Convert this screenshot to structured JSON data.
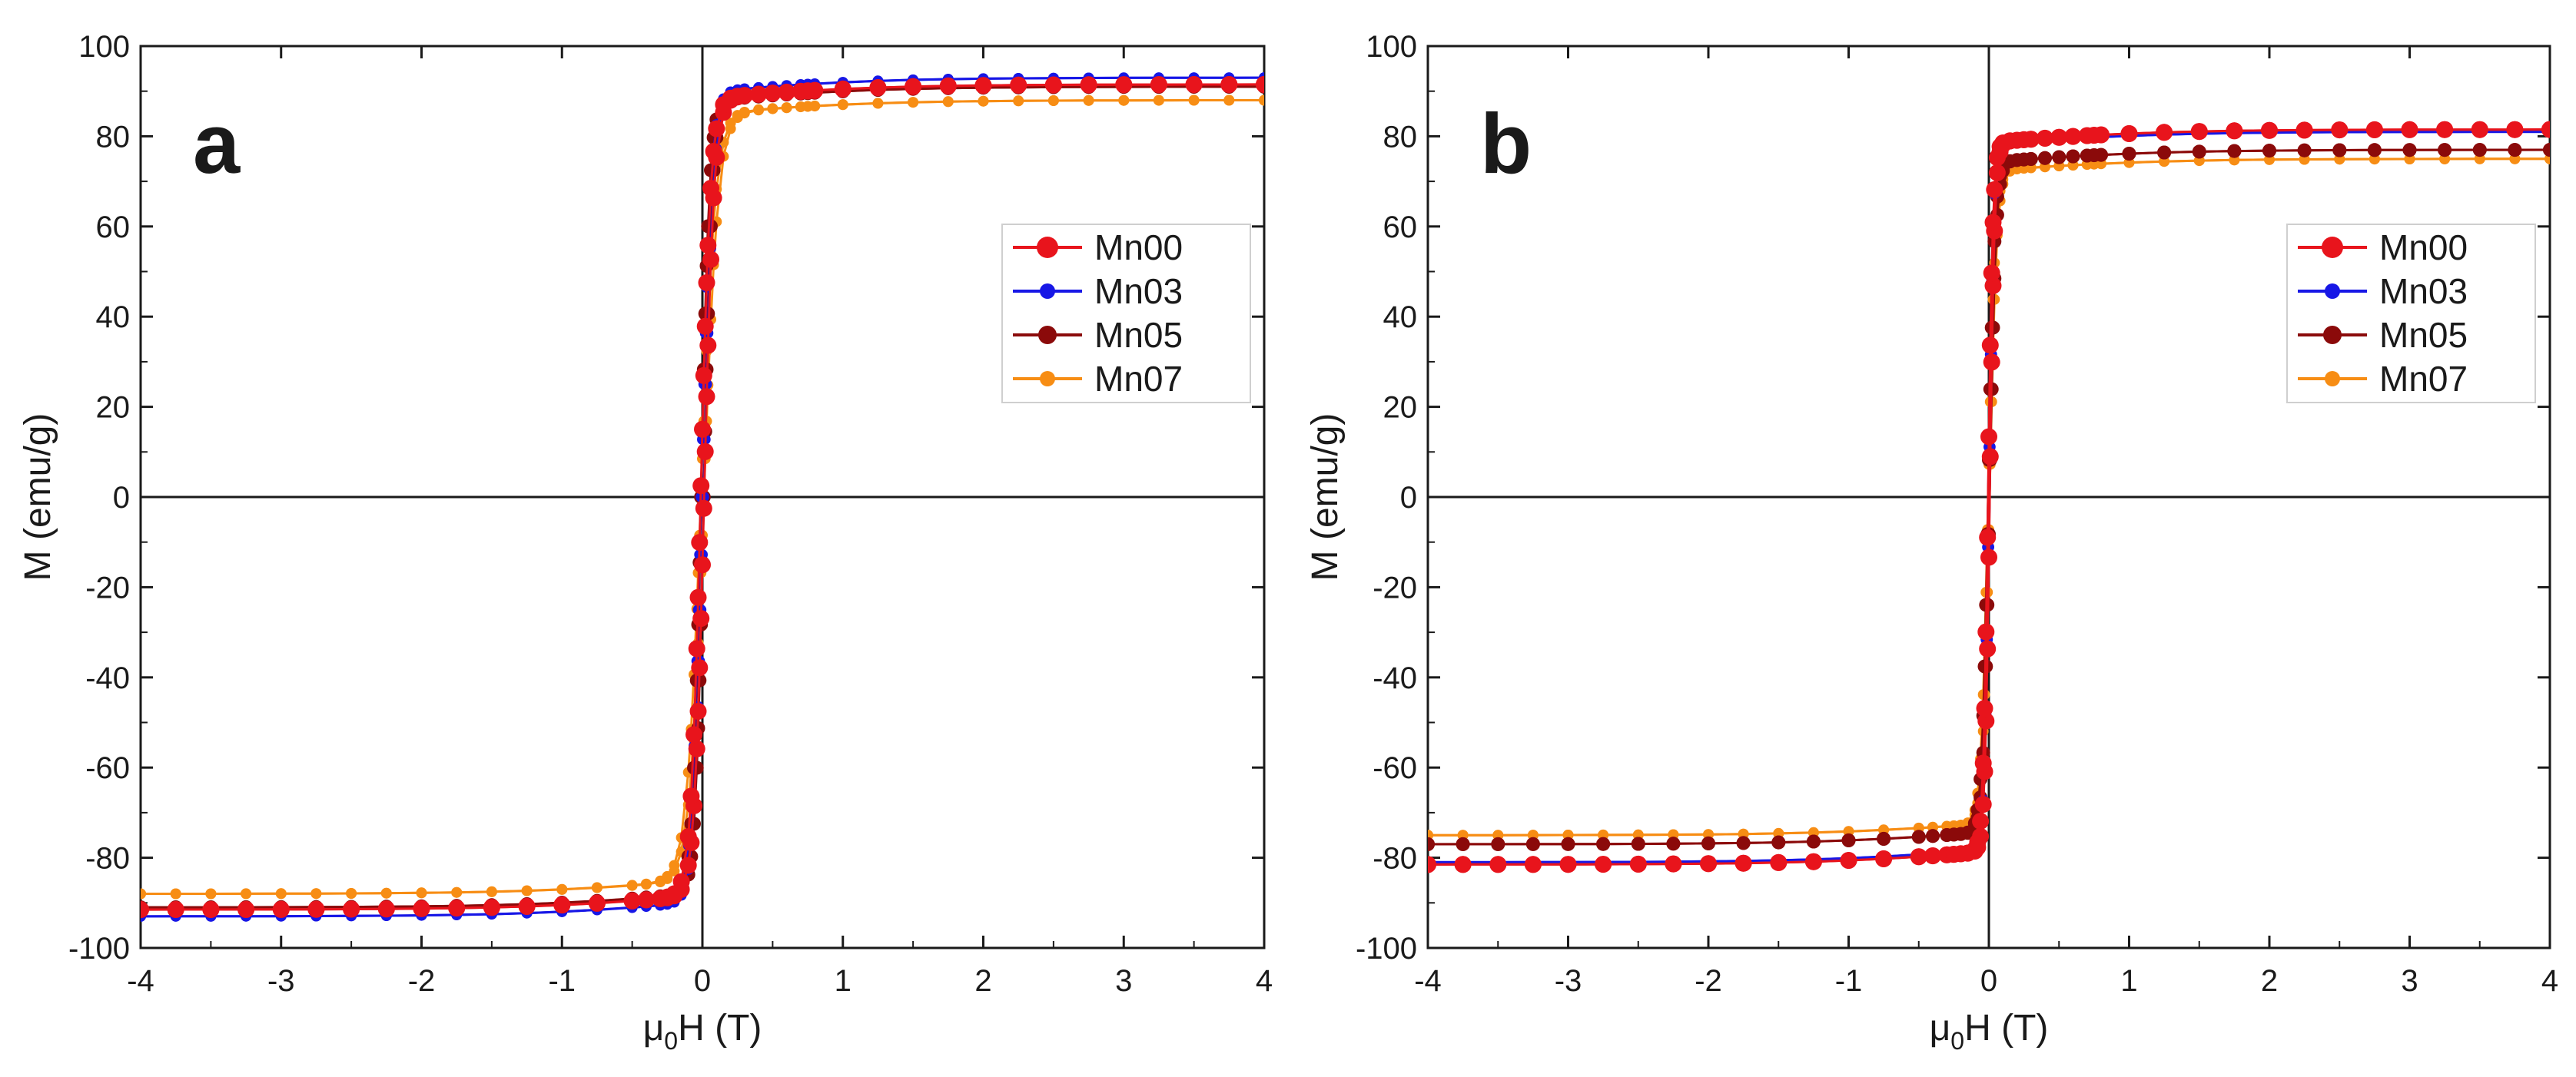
{
  "chart_data": [
    {
      "type": "line",
      "panel_label": "a",
      "title": "",
      "xlabel_main": "μ",
      "xlabel_sub": "0",
      "xlabel_rest": "H (T)",
      "ylabel": "M (emu/g)",
      "xlim": [
        -4,
        4
      ],
      "ylim": [
        -100,
        100
      ],
      "xticks": [
        -4,
        -3,
        -2,
        -1,
        0,
        1,
        2,
        3,
        4
      ],
      "yticks": [
        -100,
        -80,
        -60,
        -40,
        -20,
        0,
        20,
        40,
        60,
        80,
        100
      ],
      "grid": false,
      "legend_position": "upper-right",
      "series": [
        {
          "name": "Mn00",
          "color": "#e8141c",
          "ms": 11,
          "Ms": 91.5,
          "Hk": 0.07,
          "Hc": 0.012
        },
        {
          "name": "Mn03",
          "color": "#1717e6",
          "ms": 7,
          "Ms": 93,
          "Hk": 0.07,
          "Hc": 0.01
        },
        {
          "name": "Mn05",
          "color": "#8b0a0a",
          "ms": 9,
          "Ms": 91,
          "Hk": 0.06,
          "Hc": 0.01
        },
        {
          "name": "Mn07",
          "color": "#f78d14",
          "ms": 7,
          "Ms": 88,
          "Hk": 0.1,
          "Hc": 0.01
        }
      ]
    },
    {
      "type": "line",
      "panel_label": "b",
      "title": "",
      "xlabel_main": "μ",
      "xlabel_sub": "0",
      "xlabel_rest": "H (T)",
      "ylabel": "M (emu/g)",
      "xlim": [
        -4,
        4
      ],
      "ylim": [
        -100,
        100
      ],
      "xticks": [
        -4,
        -3,
        -2,
        -1,
        0,
        1,
        2,
        3,
        4
      ],
      "yticks": [
        -100,
        -80,
        -60,
        -40,
        -20,
        0,
        20,
        40,
        60,
        80,
        100
      ],
      "grid": false,
      "legend_position": "upper-right",
      "series": [
        {
          "name": "Mn00",
          "color": "#e8141c",
          "ms": 11,
          "Ms": 81.5,
          "Hk": 0.035,
          "Hc": 0.006
        },
        {
          "name": "Mn03",
          "color": "#1717e6",
          "ms": 7,
          "Ms": 81,
          "Hk": 0.035,
          "Hc": 0.005
        },
        {
          "name": "Mn05",
          "color": "#8b0a0a",
          "ms": 9,
          "Ms": 77,
          "Hk": 0.045,
          "Hc": 0.005
        },
        {
          "name": "Mn07",
          "color": "#f78d14",
          "ms": 7,
          "Ms": 75,
          "Hk": 0.05,
          "Hc": 0.005
        }
      ]
    }
  ]
}
